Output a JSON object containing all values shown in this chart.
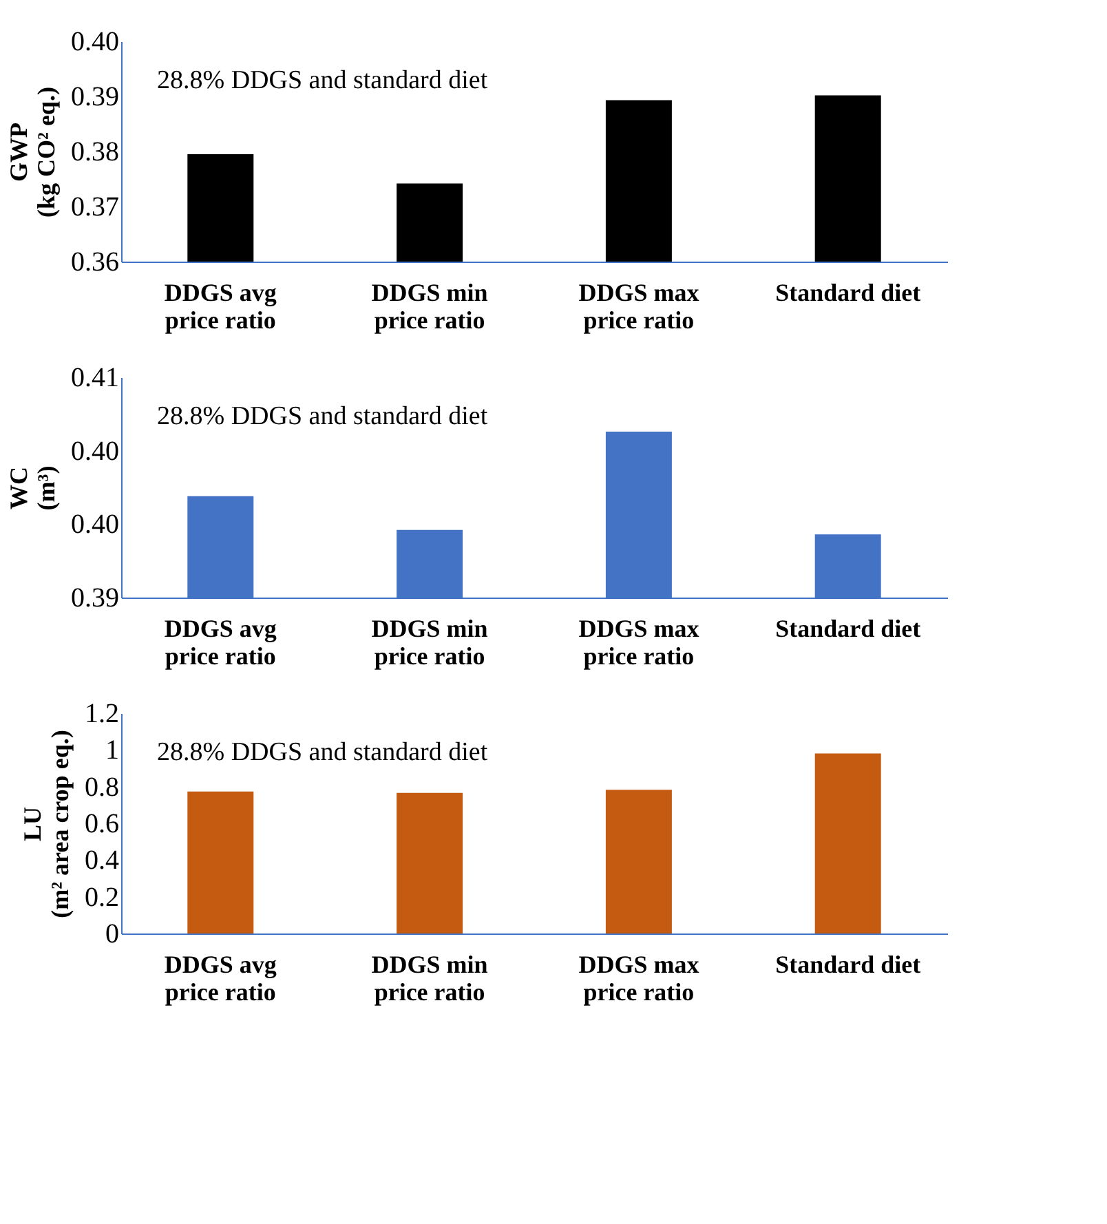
{
  "chart_data": [
    {
      "type": "bar",
      "ylabel": "GWP\n(kg CO² eq.)",
      "categories": [
        "DDGS avg\nprice ratio",
        "DDGS min\nprice ratio",
        "DDGS max\nprice ratio",
        "Standard diet"
      ],
      "values": [
        0.3795,
        0.3742,
        0.3893,
        0.3902
      ],
      "color": "#000000",
      "ylim": [
        0.36,
        0.4
      ],
      "yticks": [
        {
          "value": 0.36,
          "label": "0.36"
        },
        {
          "value": 0.37,
          "label": "0.37"
        },
        {
          "value": 0.38,
          "label": "0.38"
        },
        {
          "value": 0.39,
          "label": "0.39"
        },
        {
          "value": 0.4,
          "label": "0.40"
        }
      ],
      "grid": false,
      "annotations": [
        "28.8% DDGS and standard diet"
      ]
    },
    {
      "type": "bar",
      "ylabel": "WC\n(m³)",
      "categories": [
        "DDGS avg\nprice ratio",
        "DDGS min\nprice ratio",
        "DDGS max\nprice ratio",
        "Standard diet"
      ],
      "values": [
        0.4019,
        0.3996,
        0.4063,
        0.3993
      ],
      "color": "#4472c4",
      "ylim": [
        0.395,
        0.41
      ],
      "yticks": [
        {
          "value": 0.395,
          "label": "0.39"
        },
        {
          "value": 0.4,
          "label": "0.40"
        },
        {
          "value": 0.405,
          "label": "0.40"
        },
        {
          "value": 0.41,
          "label": "0.41"
        }
      ],
      "grid": false,
      "annotations": [
        "28.8% DDGS and standard diet"
      ]
    },
    {
      "type": "bar",
      "ylabel": "LU\n(m² area crop eq.)",
      "categories": [
        "DDGS avg\nprice ratio",
        "DDGS min\nprice ratio",
        "DDGS max\nprice ratio",
        "Standard diet"
      ],
      "values": [
        0.773,
        0.766,
        0.783,
        0.981
      ],
      "color": "#c55a11",
      "ylim": [
        0,
        1.2
      ],
      "yticks": [
        0,
        0.2,
        0.4,
        0.6,
        0.8,
        1,
        1.2
      ],
      "grid": false,
      "annotations": [
        "28.8% DDGS and standard diet"
      ]
    }
  ]
}
